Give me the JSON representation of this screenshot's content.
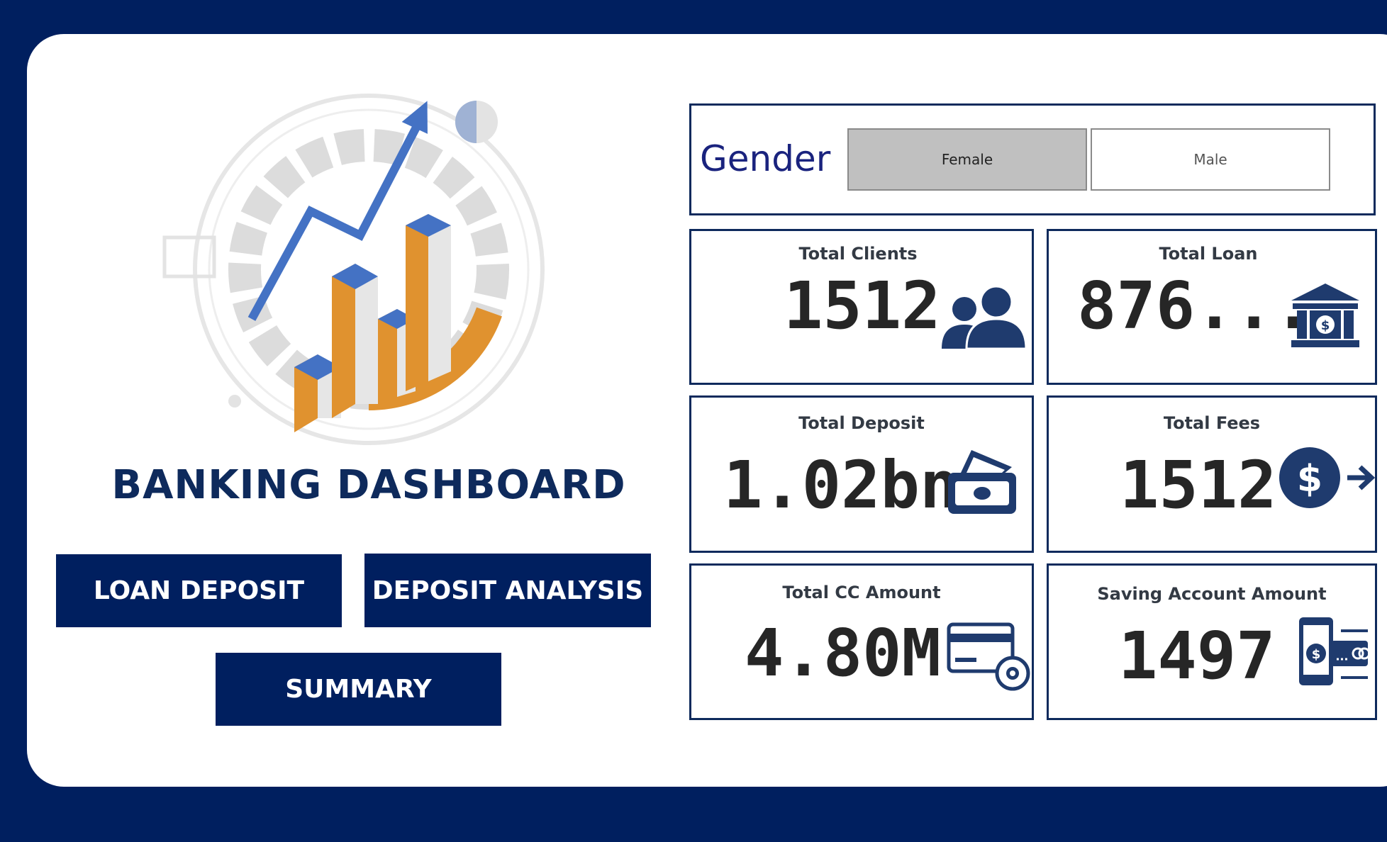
{
  "brand": {
    "title": "BANKING DASHBOARD"
  },
  "nav": {
    "loan_deposit": "LOAN DEPOSIT",
    "deposit_analysis": "DEPOSIT ANALYSIS",
    "summary": "SUMMARY"
  },
  "gender_filter": {
    "label": "Gender",
    "options": [
      {
        "label": "Female",
        "selected": true
      },
      {
        "label": "Male",
        "selected": false
      }
    ]
  },
  "kpis": [
    {
      "title": "Total Clients",
      "value": "1512",
      "icon": "users-icon"
    },
    {
      "title": "Total Loan",
      "value": "876....",
      "icon": "bank-icon"
    },
    {
      "title": "Total Deposit",
      "value": "1.02bn",
      "icon": "cash-wallet-icon"
    },
    {
      "title": "Total Fees",
      "value": "1512",
      "icon": "dollar-arrow-icon"
    },
    {
      "title": "Total CC Amount",
      "value": "4.80M",
      "icon": "credit-card-settings-icon"
    },
    {
      "title": "Saving Account Amount",
      "value": "1497",
      "icon": "mobile-payment-icon"
    }
  ],
  "colors": {
    "navy": "#001f5f",
    "accent_blue": "#4472c4",
    "accent_orange": "#e0922f",
    "icon_navy": "#1f3b6e"
  }
}
